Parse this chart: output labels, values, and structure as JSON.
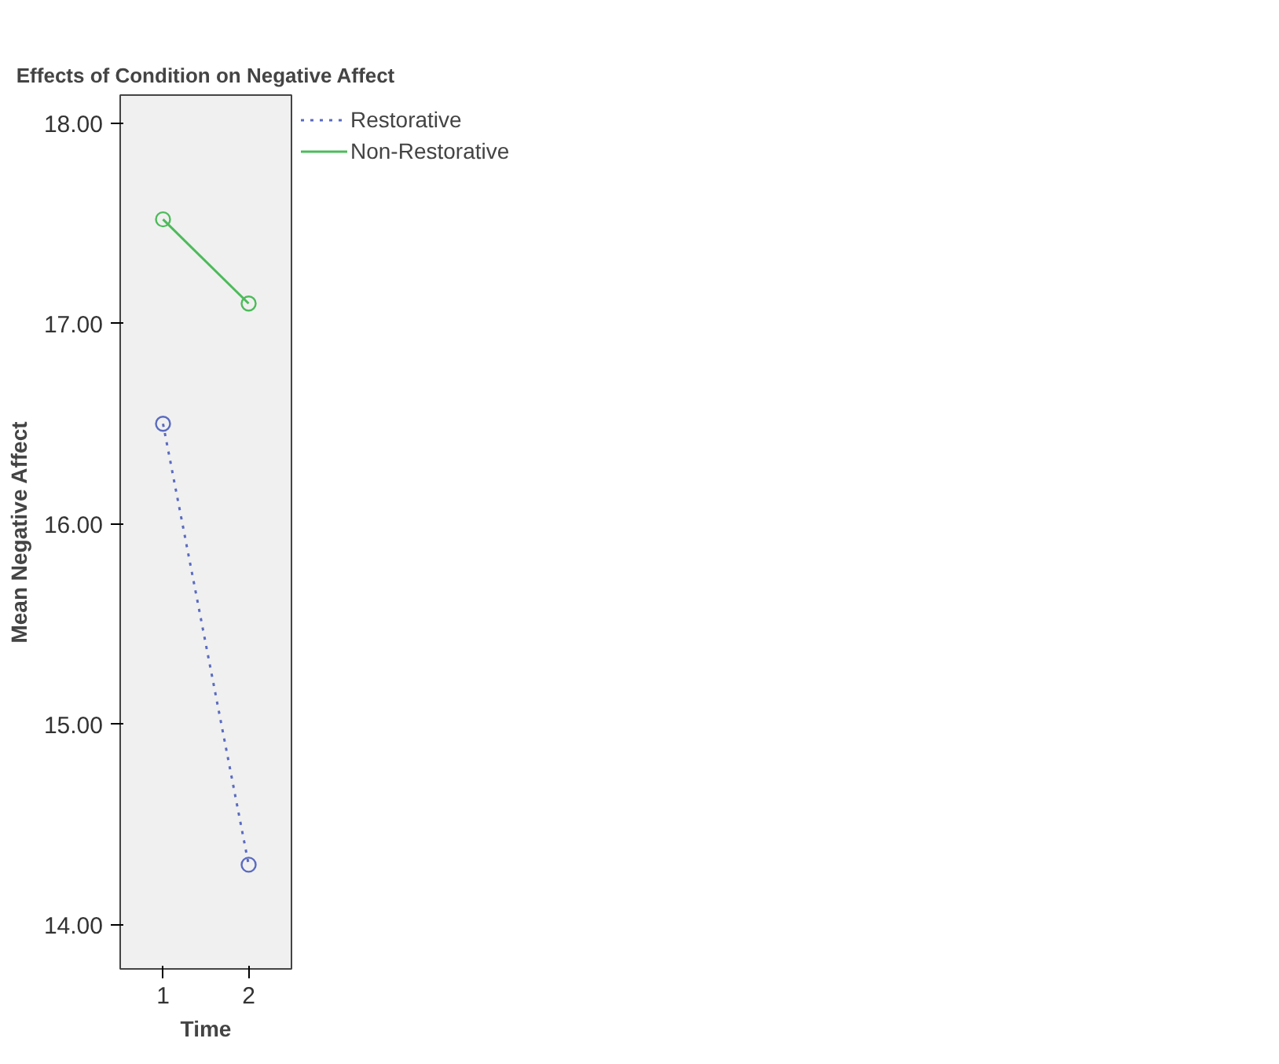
{
  "chart_data": {
    "type": "line",
    "title": "Effects of Condition on Negative Affect",
    "xlabel": "Time",
    "ylabel": "Mean Negative Affect",
    "x": [
      1,
      2
    ],
    "xlim": [
      0.5,
      2.5
    ],
    "xticks": [
      1,
      2
    ],
    "ylim": [
      13.78,
      18.14
    ],
    "yticks": [
      {
        "value": 14,
        "label": "14.00"
      },
      {
        "value": 15,
        "label": "15.00"
      },
      {
        "value": 16,
        "label": "16.00"
      },
      {
        "value": 17,
        "label": "17.00"
      },
      {
        "value": 18,
        "label": "18.00"
      }
    ],
    "series": [
      {
        "name": "Restorative",
        "color": "#5a6bc0",
        "values": [
          16.5,
          14.3
        ],
        "line_style": "dotted"
      },
      {
        "name": "Non-Restorative",
        "color": "#4cbb5a",
        "values": [
          17.52,
          17.1
        ],
        "line_style": "solid"
      }
    ],
    "marker": "circle",
    "grid": false,
    "legend": "top right"
  }
}
